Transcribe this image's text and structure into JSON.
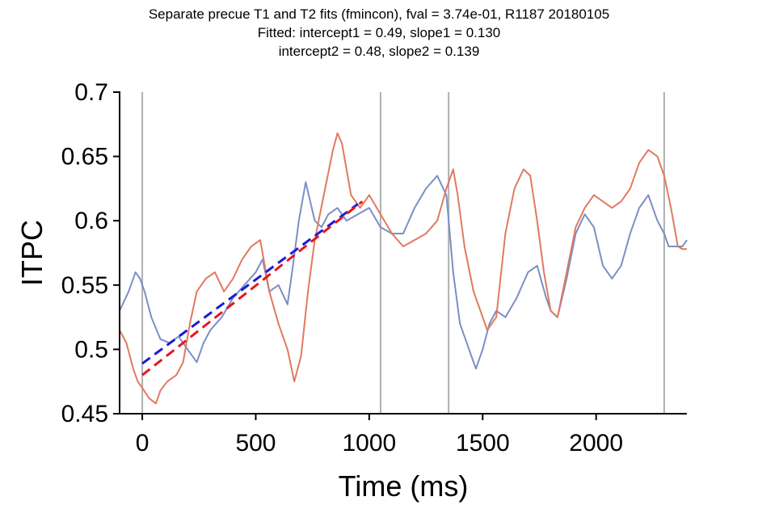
{
  "chart_data": {
    "type": "line",
    "title_lines": [
      "Separate precue T1 and T2 fits (fmincon), fval = 3.74e-01, R1187 20180105",
      "Fitted: intercept1 = 0.49, slope1 = 0.130",
      "intercept2 = 0.48, slope2 = 0.139"
    ],
    "xlabel": "Time (ms)",
    "ylabel": "ITPC",
    "xlim": [
      -100,
      2400
    ],
    "ylim": [
      0.45,
      0.7
    ],
    "xticks": [
      0,
      500,
      1000,
      1500,
      2000
    ],
    "xtick_labels": [
      "0",
      "500",
      "1000",
      "1500",
      "2000"
    ],
    "yticks": [
      0.45,
      0.5,
      0.55,
      0.6,
      0.65,
      0.7
    ],
    "ytick_labels": [
      "0.45",
      "0.5",
      "0.55",
      "0.6",
      "0.65",
      "0.7"
    ],
    "grid": false,
    "event_lines_x": [
      0,
      1050,
      1350,
      2300
    ],
    "colors": {
      "series_blue": "#7b8fc4",
      "series_orange": "#e07a5f",
      "fit_blue": "#1a1adb",
      "fit_red": "#e8161b",
      "event_line": "#b0b0b0"
    },
    "series": [
      {
        "color_key": "series_blue",
        "x": [
          -100,
          -60,
          -30,
          -10,
          10,
          40,
          80,
          120,
          160,
          200,
          240,
          270,
          300,
          350,
          400,
          450,
          500,
          530,
          560,
          600,
          640,
          660,
          690,
          720,
          740,
          760,
          790,
          820,
          860,
          900,
          950,
          1000,
          1050,
          1100,
          1150,
          1200,
          1250,
          1300,
          1340,
          1370,
          1400,
          1430,
          1470,
          1500,
          1530,
          1560,
          1600,
          1650,
          1700,
          1740,
          1780,
          1800,
          1830,
          1870,
          1910,
          1950,
          1990,
          2030,
          2070,
          2110,
          2150,
          2190,
          2230,
          2270,
          2300,
          2320,
          2350,
          2380,
          2400
        ],
        "y": [
          0.53,
          0.545,
          0.56,
          0.555,
          0.545,
          0.525,
          0.508,
          0.505,
          0.51,
          0.5,
          0.49,
          0.505,
          0.515,
          0.525,
          0.54,
          0.55,
          0.56,
          0.57,
          0.545,
          0.55,
          0.535,
          0.56,
          0.6,
          0.63,
          0.615,
          0.6,
          0.595,
          0.605,
          0.61,
          0.6,
          0.605,
          0.61,
          0.595,
          0.59,
          0.59,
          0.61,
          0.625,
          0.635,
          0.62,
          0.56,
          0.52,
          0.505,
          0.485,
          0.5,
          0.52,
          0.53,
          0.525,
          0.54,
          0.56,
          0.565,
          0.54,
          0.53,
          0.525,
          0.555,
          0.59,
          0.605,
          0.595,
          0.565,
          0.555,
          0.565,
          0.59,
          0.61,
          0.62,
          0.6,
          0.59,
          0.58,
          0.58,
          0.58,
          0.585
        ]
      },
      {
        "color_key": "series_orange",
        "x": [
          -100,
          -70,
          -40,
          -20,
          0,
          30,
          60,
          80,
          110,
          150,
          180,
          210,
          240,
          280,
          320,
          360,
          400,
          440,
          480,
          520,
          560,
          600,
          640,
          670,
          700,
          730,
          760,
          800,
          840,
          860,
          880,
          920,
          960,
          1000,
          1050,
          1100,
          1150,
          1200,
          1250,
          1300,
          1340,
          1370,
          1390,
          1420,
          1460,
          1490,
          1520,
          1560,
          1600,
          1640,
          1680,
          1710,
          1740,
          1770,
          1800,
          1830,
          1870,
          1910,
          1950,
          1990,
          2030,
          2070,
          2110,
          2150,
          2190,
          2230,
          2270,
          2300,
          2330,
          2360,
          2380,
          2400
        ],
        "y": [
          0.515,
          0.505,
          0.485,
          0.475,
          0.47,
          0.462,
          0.458,
          0.468,
          0.475,
          0.48,
          0.49,
          0.52,
          0.545,
          0.555,
          0.56,
          0.545,
          0.555,
          0.57,
          0.58,
          0.585,
          0.545,
          0.52,
          0.5,
          0.475,
          0.495,
          0.545,
          0.585,
          0.62,
          0.655,
          0.668,
          0.66,
          0.62,
          0.61,
          0.62,
          0.605,
          0.59,
          0.58,
          0.585,
          0.59,
          0.6,
          0.625,
          0.64,
          0.62,
          0.58,
          0.545,
          0.53,
          0.515,
          0.525,
          0.59,
          0.625,
          0.64,
          0.635,
          0.6,
          0.56,
          0.53,
          0.525,
          0.56,
          0.595,
          0.61,
          0.62,
          0.615,
          0.61,
          0.615,
          0.625,
          0.645,
          0.655,
          0.65,
          0.635,
          0.61,
          0.58,
          0.578,
          0.578
        ]
      }
    ],
    "fits": [
      {
        "color_key": "fit_blue",
        "x": [
          0,
          950
        ],
        "y": [
          0.489,
          0.613
        ]
      },
      {
        "color_key": "fit_red",
        "x": [
          0,
          970
        ],
        "y": [
          0.48,
          0.615
        ]
      }
    ]
  }
}
